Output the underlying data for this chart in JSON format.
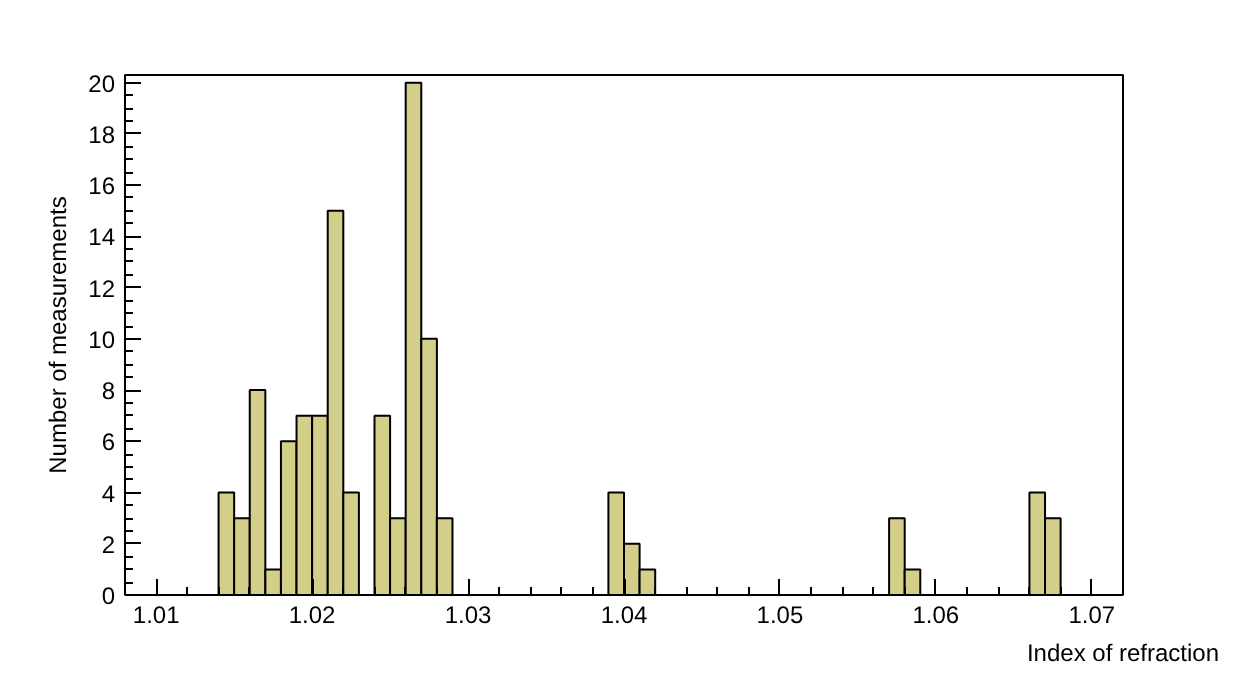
{
  "chart_data": {
    "type": "histogram",
    "xlabel": "Index of refraction",
    "ylabel": "Number of measurements",
    "bins": [
      1.014,
      1.015,
      1.016,
      1.017,
      1.018,
      1.019,
      1.02,
      1.021,
      1.022,
      1.023,
      1.024,
      1.025,
      1.026,
      1.027,
      1.028,
      1.029,
      1.03,
      1.031,
      1.032,
      1.033,
      1.034,
      1.035,
      1.036,
      1.037,
      1.038,
      1.039,
      1.04,
      1.041,
      1.042,
      1.043,
      1.044,
      1.045,
      1.046,
      1.047,
      1.048,
      1.049,
      1.05,
      1.051,
      1.052,
      1.053,
      1.054,
      1.055,
      1.056,
      1.057,
      1.058,
      1.059,
      1.06,
      1.061,
      1.062,
      1.063,
      1.064,
      1.065,
      1.066,
      1.067,
      1.068
    ],
    "values": [
      4,
      3,
      8,
      1,
      6,
      7,
      7,
      15,
      4,
      0,
      7,
      3,
      20,
      10,
      3,
      0,
      0,
      0,
      0,
      0,
      0,
      0,
      0,
      0,
      0,
      4,
      2,
      1,
      0,
      0,
      0,
      0,
      0,
      0,
      0,
      0,
      0,
      0,
      0,
      0,
      0,
      0,
      0,
      3,
      1,
      0,
      0,
      0,
      0,
      0,
      0,
      0,
      4,
      3
    ],
    "color": "#d3cf8a",
    "xlim": [
      1.008,
      1.072
    ],
    "ylim": [
      0,
      20.3
    ],
    "xticks": [
      1.01,
      1.02,
      1.03,
      1.04,
      1.05,
      1.06,
      1.07
    ],
    "yticks": [
      0,
      2,
      4,
      6,
      8,
      10,
      12,
      14,
      16,
      18,
      20
    ],
    "grid": false
  }
}
